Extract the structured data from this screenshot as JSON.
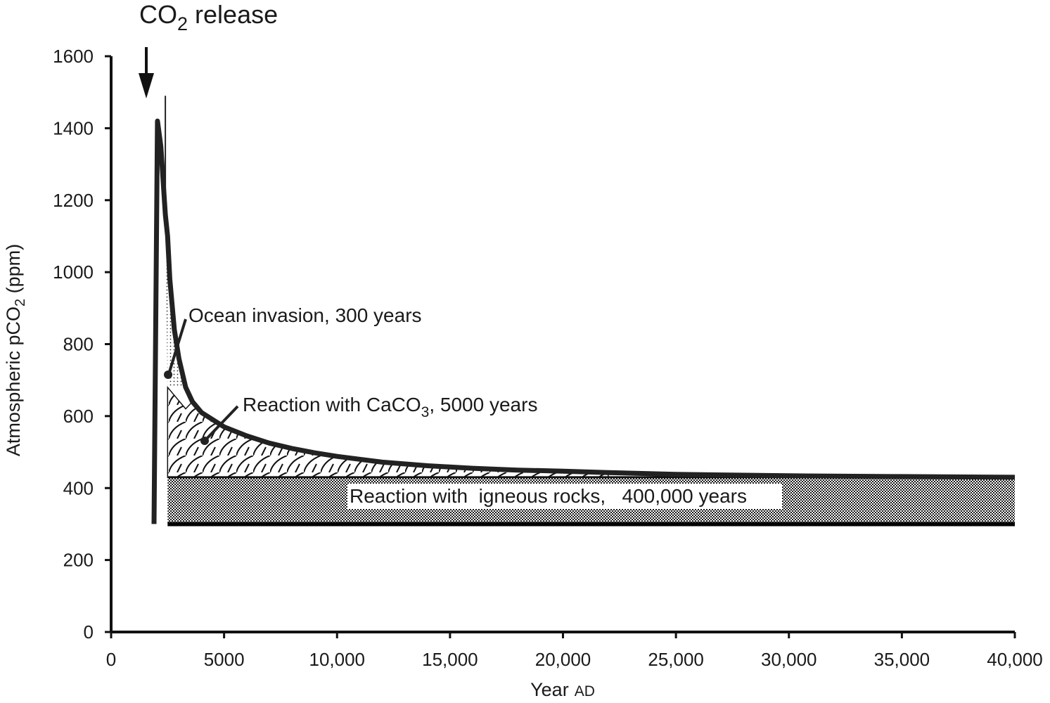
{
  "chart_data": {
    "type": "line",
    "title": "",
    "xlabel": "Year",
    "xlabel_unit": "AD",
    "ylabel_prefix": "Atmospheric pCO",
    "ylabel_sub": "2",
    "ylabel_suffix": " (ppm)",
    "xlim": [
      0,
      40000
    ],
    "ylim": [
      0,
      1600
    ],
    "x_ticks": [
      0,
      5000,
      10000,
      15000,
      20000,
      25000,
      30000,
      35000,
      40000
    ],
    "x_tick_labels": [
      "0",
      "5000",
      "10,000",
      "15,000",
      "20,000",
      "25,000",
      "30,000",
      "35,000",
      "40,000"
    ],
    "y_ticks": [
      0,
      200,
      400,
      600,
      800,
      1000,
      1200,
      1400,
      1600
    ],
    "y_tick_labels": [
      "0",
      "200",
      "400",
      "600",
      "800",
      "1000",
      "1200",
      "1400",
      "1600"
    ],
    "grid": false,
    "series": [
      {
        "x": [
          1900,
          2050,
          2200,
          2400,
          2500,
          2600,
          2800,
          3000,
          3300,
          3600,
          4000,
          5000,
          6000,
          7000,
          8000,
          9000,
          10000,
          12000,
          14000,
          16000,
          18000,
          20000,
          22000,
          25000,
          30000,
          35000,
          40000
        ],
        "y": [
          300,
          1420,
          1350,
          1160,
          1100,
          980,
          840,
          760,
          680,
          640,
          610,
          570,
          545,
          525,
          510,
          498,
          488,
          472,
          462,
          455,
          450,
          447,
          443,
          438,
          434,
          432,
          430
        ]
      }
    ],
    "baseline_pco2": 300,
    "carbonate_floor_pco2": 430,
    "regions": [
      {
        "label": "Ocean invasion, 300 years",
        "pattern": "stipple"
      },
      {
        "label_prefix": "Reaction with CaCO",
        "label_sub": "3",
        "label_suffix": ", 5000 years",
        "pattern": "scale-hatch"
      },
      {
        "label": "Reaction with  igneous rocks,   400,000 years",
        "pattern": "checker"
      }
    ],
    "release_label_prefix": "CO",
    "release_label_sub": "2",
    "release_label_suffix": " release",
    "release_year": 1600
  }
}
